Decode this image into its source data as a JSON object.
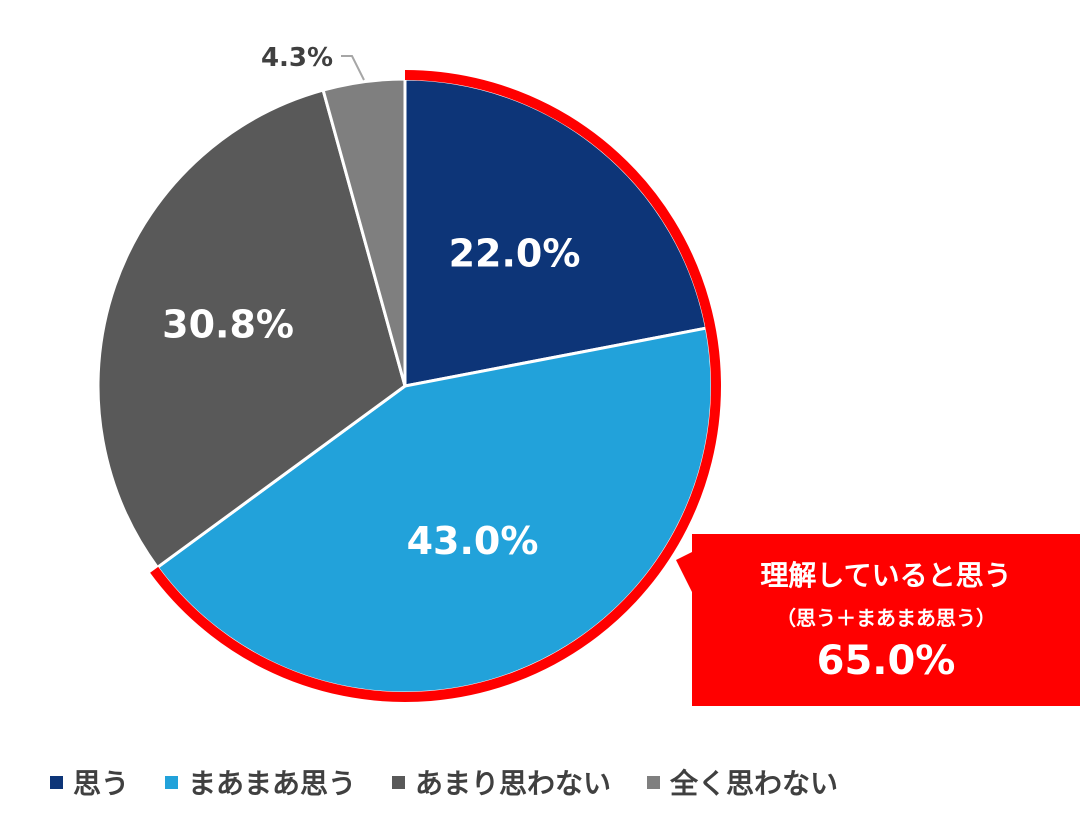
{
  "chart_data": {
    "type": "pie",
    "categories": [
      "思う",
      "まあまあ思う",
      "あまり思わない",
      "全く思わない"
    ],
    "values": [
      22.0,
      43.0,
      30.8,
      4.3
    ],
    "labels": [
      "22.0%",
      "43.0%",
      "30.8%",
      "4.3%"
    ],
    "colors": [
      "#0d3578",
      "#22a2da",
      "#595959",
      "#7f7f7f"
    ],
    "start_angle_deg": 0,
    "direction": "clockwise",
    "legend_position": "bottom",
    "highlight": {
      "segments": [
        "思う",
        "まあまあ思う"
      ],
      "color": "#ff0000",
      "title": "理解していると思う",
      "subtitle": "（思う＋まあまあ思う）",
      "value_label": "65.0%"
    }
  }
}
